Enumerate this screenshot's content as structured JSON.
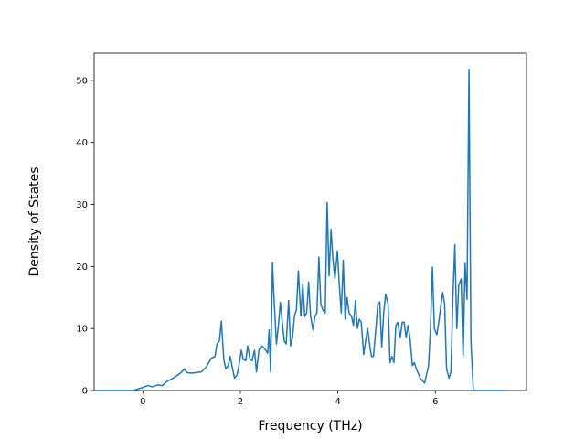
{
  "chart_data": {
    "type": "line",
    "xlabel": "Frequency (THz)",
    "ylabel": "Density of States",
    "xlim": [
      -1,
      7.87
    ],
    "ylim": [
      0,
      54.4
    ],
    "xticks": [
      0,
      2,
      4,
      6
    ],
    "yticks": [
      0,
      10,
      20,
      30,
      40,
      50
    ],
    "x": [
      -1,
      -0.2,
      0,
      0.1,
      0.2,
      0.3,
      0.4,
      0.5,
      0.6,
      0.7,
      0.8,
      0.85,
      0.9,
      1.0,
      1.2,
      1.3,
      1.4,
      1.48,
      1.52,
      1.57,
      1.61,
      1.66,
      1.7,
      1.75,
      1.79,
      1.84,
      1.88,
      1.93,
      1.97,
      2.02,
      2.06,
      2.11,
      2.15,
      2.2,
      2.24,
      2.29,
      2.33,
      2.38,
      2.43,
      2.47,
      2.52,
      2.56,
      2.59,
      2.62,
      2.66,
      2.69,
      2.74,
      2.78,
      2.82,
      2.86,
      2.9,
      2.94,
      2.99,
      3.03,
      3.07,
      3.11,
      3.15,
      3.19,
      3.24,
      3.28,
      3.32,
      3.36,
      3.4,
      3.44,
      3.49,
      3.53,
      3.57,
      3.61,
      3.65,
      3.69,
      3.74,
      3.78,
      3.82,
      3.86,
      3.9,
      3.94,
      3.99,
      4.03,
      4.07,
      4.11,
      4.15,
      4.19,
      4.23,
      4.28,
      4.32,
      4.36,
      4.4,
      4.44,
      4.48,
      4.53,
      4.57,
      4.61,
      4.65,
      4.69,
      4.73,
      4.78,
      4.82,
      4.86,
      4.9,
      4.94,
      4.98,
      5.03,
      5.07,
      5.11,
      5.15,
      5.19,
      5.23,
      5.28,
      5.32,
      5.36,
      5.4,
      5.44,
      5.48,
      5.53,
      5.57,
      5.61,
      5.69,
      5.78,
      5.86,
      5.9,
      5.94,
      5.98,
      6.03,
      6.07,
      6.11,
      6.15,
      6.19,
      6.23,
      6.28,
      6.32,
      6.36,
      6.4,
      6.44,
      6.48,
      6.53,
      6.57,
      6.61,
      6.65,
      6.69,
      6.73,
      6.78,
      7.43
    ],
    "series": [
      {
        "color": "#1f77b4",
        "values": [
          0,
          0,
          0.5,
          0.8,
          0.6,
          0.9,
          0.8,
          1.5,
          1.9,
          2.4,
          3.0,
          3.5,
          2.9,
          2.8,
          3.0,
          3.8,
          5.2,
          5.5,
          7.5,
          8,
          11.2,
          5,
          3.5,
          4,
          5.5,
          3.5,
          2,
          2.5,
          4,
          6.5,
          5,
          4.8,
          7.2,
          5,
          4.8,
          6.5,
          3,
          6.5,
          7.2,
          7,
          6.5,
          6,
          9.8,
          3,
          20.6,
          15,
          7.5,
          10.5,
          14.2,
          11,
          8,
          7.5,
          14.5,
          7.2,
          8.5,
          12,
          13,
          19.3,
          12,
          17.2,
          12,
          12.5,
          17.5,
          12,
          9.8,
          12,
          12.5,
          21.5,
          14,
          13,
          12.5,
          30.3,
          18.5,
          26,
          21,
          18,
          22.5,
          17,
          12.5,
          21,
          11.5,
          15,
          12.5,
          12,
          10.5,
          14.5,
          10,
          11.5,
          11,
          5.8,
          8,
          10,
          7.5,
          5.5,
          5.5,
          10,
          14,
          14.3,
          7,
          12.5,
          15.5,
          14,
          4.5,
          5.5,
          4.5,
          10.5,
          11,
          8.5,
          11,
          11,
          8.5,
          10.5,
          8.5,
          4,
          4.5,
          3.5,
          2,
          1.2,
          4,
          10,
          19.9,
          10,
          9,
          11,
          13.5,
          15.8,
          14,
          3.5,
          2,
          3,
          15,
          23.5,
          10,
          17,
          18,
          5.5,
          20.5,
          14.7,
          51.8,
          8,
          0,
          0
        ]
      }
    ]
  }
}
